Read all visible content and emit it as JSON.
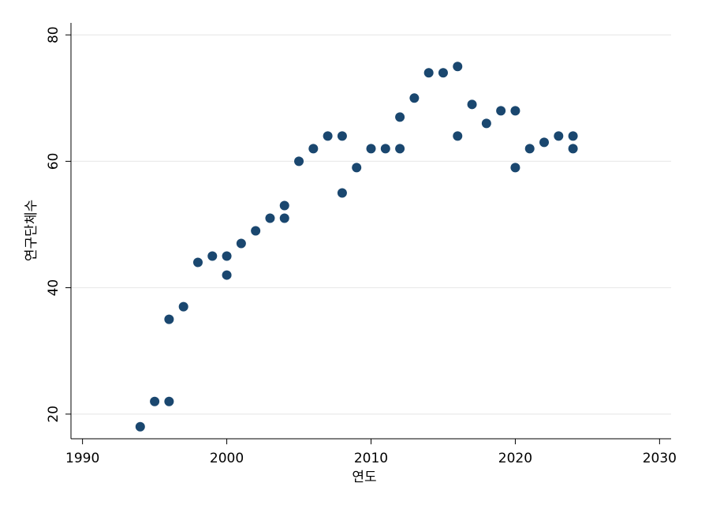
{
  "chart_data": {
    "type": "scatter",
    "x_label": "연도",
    "y_label": "연구단체수",
    "x": [
      1994,
      1995,
      1996,
      1996,
      1997,
      1998,
      1999,
      2000,
      2000,
      2001,
      2002,
      2003,
      2004,
      2004,
      2005,
      2006,
      2007,
      2008,
      2008,
      2009,
      2010,
      2011,
      2012,
      2012,
      2013,
      2014,
      2015,
      2016,
      2016,
      2017,
      2018,
      2019,
      2020,
      2020,
      2021,
      2022,
      2023,
      2024,
      2024
    ],
    "values": [
      18,
      22,
      22,
      35,
      37,
      44,
      45,
      45,
      42,
      47,
      49,
      51,
      51,
      53,
      60,
      62,
      64,
      64,
      55,
      59,
      62,
      62,
      67,
      62,
      70,
      74,
      74,
      75,
      64,
      69,
      66,
      68,
      68,
      59,
      62,
      63,
      64,
      64,
      62
    ],
    "color": "#1a476f",
    "xlim": [
      1989.2,
      2030.8
    ],
    "xticks": [
      1990,
      2000,
      2010,
      2020,
      2030
    ],
    "ylim": [
      16.1,
      81.9
    ],
    "yticks": [
      20,
      40,
      60,
      80
    ],
    "grid": true
  }
}
